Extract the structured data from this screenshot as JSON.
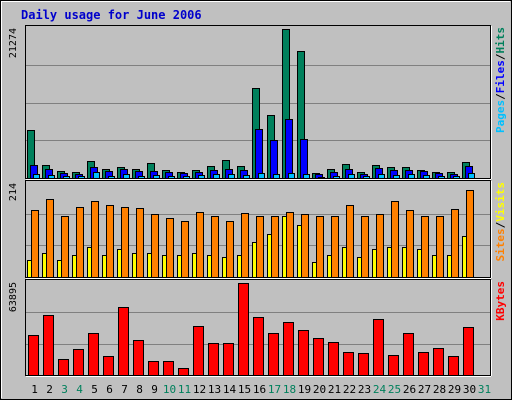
{
  "title": "Daily usage for June 2006",
  "colors": {
    "background": "#c0c0c0",
    "plot_background": "#c0c0c0",
    "title": "#0000cc",
    "hits": "#00805c",
    "files": "#0000ff",
    "pages": "#00c0ff",
    "visits": "#ffff00",
    "sites": "#ff8000",
    "kbytes": "#ff0000",
    "weekend_label": "#00805c",
    "weekday_label": "#000000"
  },
  "chart_data": [
    {
      "type": "bar",
      "panel": "top",
      "ymax_label": "21274",
      "ylim": [
        0,
        21274
      ],
      "legend": [
        "Pages",
        "/",
        "Files",
        "/",
        "Hits"
      ],
      "categories": [
        "1",
        "2",
        "3",
        "4",
        "5",
        "6",
        "7",
        "8",
        "9",
        "10",
        "11",
        "12",
        "13",
        "14",
        "15",
        "16",
        "17",
        "18",
        "19",
        "20",
        "21",
        "22",
        "23",
        "24",
        "25",
        "26",
        "27",
        "28",
        "29",
        "30",
        "31"
      ],
      "weekend_days": [
        "3",
        "4",
        "10",
        "11",
        "17",
        "18",
        "24",
        "25",
        "31"
      ],
      "series": [
        {
          "name": "Hits",
          "values": [
            6900,
            1900,
            1000,
            900,
            2400,
            1300,
            1600,
            1300,
            2100,
            1100,
            900,
            1200,
            1700,
            2500,
            1700,
            12900,
            9000,
            21274,
            18200,
            700,
            1300,
            2000,
            900,
            1800,
            1600,
            1500,
            1200,
            900,
            800,
            2300,
            null
          ]
        },
        {
          "name": "Files",
          "values": [
            1800,
            1300,
            700,
            600,
            1600,
            1000,
            1300,
            1000,
            1000,
            800,
            700,
            900,
            1200,
            1300,
            1200,
            7000,
            5400,
            8400,
            5600,
            500,
            900,
            1300,
            600,
            1400,
            1200,
            1200,
            1000,
            700,
            600,
            1700,
            null
          ]
        },
        {
          "name": "Pages",
          "values": [
            500,
            400,
            300,
            250,
            800,
            300,
            500,
            300,
            400,
            300,
            300,
            400,
            500,
            500,
            400,
            700,
            600,
            700,
            600,
            200,
            300,
            600,
            250,
            500,
            450,
            500,
            400,
            300,
            300,
            700,
            null
          ]
        }
      ]
    },
    {
      "type": "bar",
      "panel": "middle",
      "ymax_label": "214",
      "ylim": [
        0,
        214
      ],
      "legend": [
        "Sites",
        "/",
        "Visits"
      ],
      "categories": [
        "1",
        "2",
        "3",
        "4",
        "5",
        "6",
        "7",
        "8",
        "9",
        "10",
        "11",
        "12",
        "13",
        "14",
        "15",
        "16",
        "17",
        "18",
        "19",
        "20",
        "21",
        "22",
        "23",
        "24",
        "25",
        "26",
        "27",
        "28",
        "29",
        "30",
        "31"
      ],
      "series": [
        {
          "name": "Sites",
          "values": [
            155,
            180,
            140,
            160,
            175,
            165,
            160,
            158,
            145,
            135,
            130,
            150,
            140,
            130,
            148,
            140,
            140,
            150,
            145,
            140,
            140,
            165,
            140,
            145,
            175,
            155,
            140,
            140,
            156,
            200,
            null
          ]
        },
        {
          "name": "Visits",
          "values": [
            40,
            55,
            40,
            50,
            70,
            50,
            65,
            55,
            55,
            50,
            50,
            55,
            50,
            45,
            50,
            80,
            100,
            140,
            120,
            35,
            50,
            70,
            45,
            65,
            70,
            70,
            65,
            50,
            50,
            95,
            null
          ]
        }
      ]
    },
    {
      "type": "bar",
      "panel": "bottom",
      "ymax_label": "63895",
      "ylim": [
        0,
        63895
      ],
      "legend": [
        "KBytes"
      ],
      "categories": [
        "1",
        "2",
        "3",
        "4",
        "5",
        "6",
        "7",
        "8",
        "9",
        "10",
        "11",
        "12",
        "13",
        "14",
        "15",
        "16",
        "17",
        "18",
        "19",
        "20",
        "21",
        "22",
        "23",
        "24",
        "25",
        "26",
        "27",
        "28",
        "29",
        "30",
        "31"
      ],
      "series": [
        {
          "name": "KBytes",
          "values": [
            28000,
            42000,
            11000,
            18000,
            29000,
            13000,
            47000,
            24000,
            10000,
            10000,
            5000,
            34000,
            22000,
            22000,
            63895,
            40000,
            29000,
            37000,
            31000,
            26000,
            23000,
            16000,
            15000,
            39000,
            14000,
            29000,
            16000,
            19000,
            13000,
            33000,
            null
          ]
        }
      ]
    }
  ]
}
